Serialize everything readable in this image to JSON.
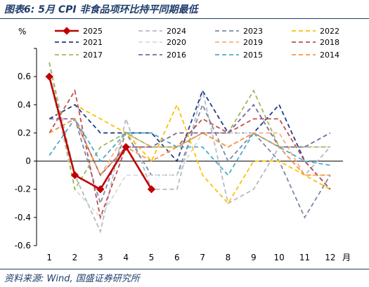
{
  "header": {
    "title": "图表6:  5月 CPI 非食品项环比持平同期最低"
  },
  "footer": {
    "source": "资料来源:  Wind, 国盛证券研究所"
  },
  "chart_data": {
    "type": "line",
    "ylabel": "%",
    "xlabel": "月",
    "x": [
      1,
      2,
      3,
      4,
      5,
      6,
      7,
      8,
      9,
      10,
      11,
      12
    ],
    "ylim": [
      -0.6,
      0.8
    ],
    "yticks": [
      -0.6,
      -0.4,
      -0.2,
      0,
      0.2,
      0.4,
      0.6
    ],
    "ytick_labels": [
      "-0.6",
      "-0.4",
      "-0.2",
      "0",
      "0.2",
      "0.4",
      "0.6"
    ],
    "grid": false,
    "legend_position": "top-right",
    "series": [
      {
        "name": "2025",
        "color": "#c00000",
        "style": "solid-marker",
        "values": [
          0.6,
          -0.1,
          -0.2,
          0.1,
          -0.2,
          null,
          null,
          null,
          null,
          null,
          null,
          null
        ]
      },
      {
        "name": "2024",
        "color": "#b4b9c6",
        "style": "dash",
        "values": [
          0.7,
          -0.1,
          -0.5,
          0.3,
          -0.2,
          -0.2,
          0.5,
          -0.3,
          -0.2,
          0.1,
          -0.1,
          0.1
        ]
      },
      {
        "name": "2023",
        "color": "#7a8aa6",
        "style": "dash",
        "values": [
          0.2,
          0.3,
          -0.3,
          0.2,
          -0.1,
          -0.1,
          0.4,
          0.0,
          0.2,
          0.0,
          -0.4,
          -0.1
        ]
      },
      {
        "name": "2022",
        "color": "#ffc000",
        "style": "dash",
        "values": [
          0.3,
          0.4,
          0.3,
          0.2,
          0.0,
          0.4,
          -0.1,
          -0.3,
          0.0,
          0.0,
          -0.1,
          -0.2
        ]
      },
      {
        "name": "2021",
        "color": "#1f3d8b",
        "style": "dash",
        "values": [
          0.3,
          0.4,
          0.2,
          0.2,
          0.2,
          0.0,
          0.5,
          0.2,
          0.2,
          0.4,
          0.0,
          -0.2
        ]
      },
      {
        "name": "2020",
        "color": "#d9d9d9",
        "style": "dash",
        "values": [
          0.6,
          -0.2,
          -0.4,
          -0.1,
          -0.1,
          -0.1,
          0.2,
          0.2,
          0.2,
          0.1,
          0.1,
          0.1
        ]
      },
      {
        "name": "2019",
        "color": "#f4b183",
        "style": "dash",
        "values": [
          0.2,
          0.3,
          -0.1,
          0.2,
          0.1,
          0.1,
          0.2,
          0.1,
          0.2,
          0.2,
          -0.1,
          -0.1
        ]
      },
      {
        "name": "2018",
        "color": "#c0504d",
        "style": "dash",
        "values": [
          0.2,
          0.5,
          -0.4,
          0.1,
          0.1,
          0.1,
          0.3,
          0.2,
          0.3,
          0.3,
          0.0,
          -0.2
        ]
      },
      {
        "name": "2017",
        "color": "#9bbb59",
        "style": "dash",
        "values": [
          0.7,
          -0.2,
          0.1,
          0.2,
          0.1,
          0.1,
          0.2,
          0.2,
          0.5,
          0.1,
          0.1,
          0.1
        ]
      },
      {
        "name": "2016",
        "color": "#8064a2",
        "style": "dash",
        "values": [
          0.3,
          0.3,
          -0.1,
          0.1,
          0.1,
          0.2,
          0.2,
          0.2,
          0.4,
          0.1,
          0.1,
          0.2
        ]
      },
      {
        "name": "2015",
        "color": "#4bacc6",
        "style": "dash",
        "values": [
          0.04,
          0.3,
          0.0,
          0.2,
          0.2,
          0.1,
          0.1,
          -0.1,
          0.2,
          0.1,
          0.0,
          -0.03
        ]
      },
      {
        "name": "2014",
        "color": "#f79646",
        "style": "dash",
        "values": [
          0.2,
          0.3,
          -0.1,
          0.1,
          0.0,
          0.1,
          0.2,
          0.1,
          0.2,
          0.1,
          -0.1,
          -0.1
        ]
      }
    ]
  }
}
